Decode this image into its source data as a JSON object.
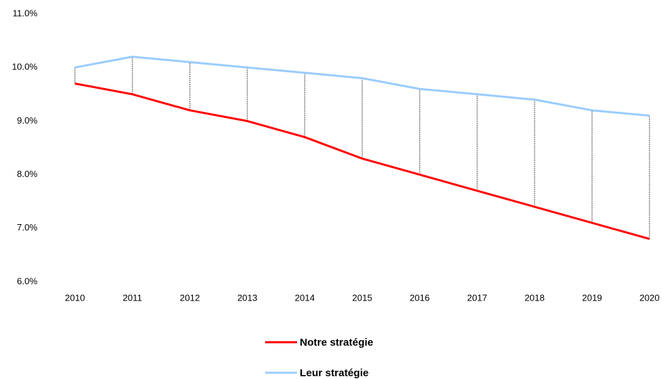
{
  "chart_data": {
    "type": "line",
    "categories": [
      "2010",
      "2011",
      "2012",
      "2013",
      "2014",
      "2015",
      "2016",
      "2017",
      "2018",
      "2019",
      "2020"
    ],
    "series": [
      {
        "name": "Notre stratégie",
        "color": "#ff0000",
        "values": [
          9.7,
          9.5,
          9.2,
          9.0,
          8.7,
          8.3,
          8.0,
          7.7,
          7.4,
          7.1,
          6.8
        ]
      },
      {
        "name": "Leur stratégie",
        "color": "#99ccff",
        "values": [
          10.0,
          10.2,
          10.1,
          10.0,
          9.9,
          9.8,
          9.6,
          9.5,
          9.4,
          9.2,
          9.1
        ]
      }
    ],
    "ylim": [
      6,
      11
    ],
    "yticks": [
      {
        "value": 6,
        "label": "6.0%"
      },
      {
        "value": 7,
        "label": "7.0%"
      },
      {
        "value": 8,
        "label": "8.0%"
      },
      {
        "value": 9,
        "label": "9.0%"
      },
      {
        "value": 10,
        "label": "10.0%"
      },
      {
        "value": 11,
        "label": "11.0%"
      }
    ],
    "drop_lines": true,
    "grid": false,
    "legend": "bottom"
  }
}
